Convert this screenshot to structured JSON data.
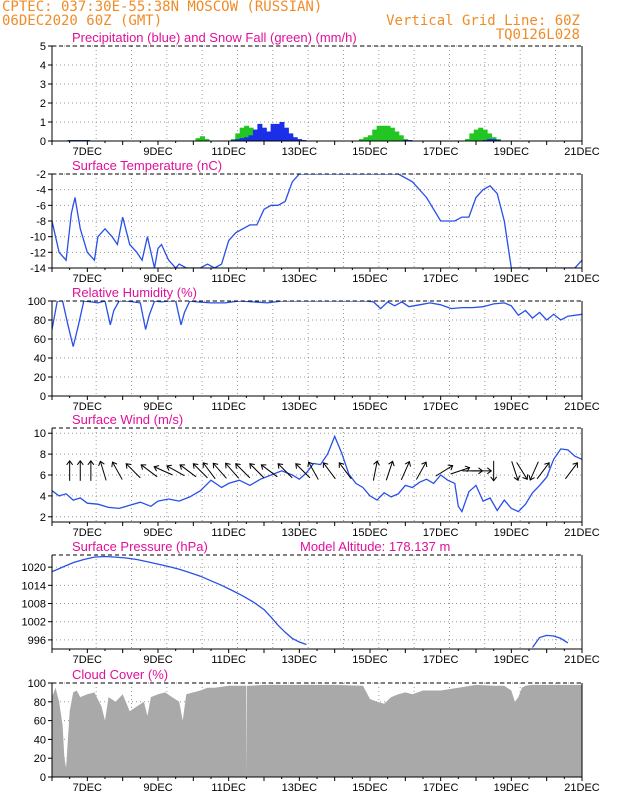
{
  "header": {
    "line1": "CPTEC:   037:30E-55:38N   MOSCOW (RUSSIAN)",
    "line2": "06DEC2020 60Z (GMT)",
    "grid_note": "Vertical Grid Line: 60Z",
    "code": "TQ0126L028"
  },
  "colors": {
    "header": "#f08c28",
    "title": "#e0109a",
    "line": "#2850e8",
    "precip": "#1b2fe8",
    "snow": "#22c522",
    "cloud": "#a9a9a9",
    "arrow": "#000000"
  },
  "chart_data": [
    {
      "id": "precip",
      "type": "bar",
      "title": "Precipitation (blue) and Snow Fall (green) (mm/h)",
      "ylim": [
        0,
        5
      ],
      "yticks": [
        "0",
        "1",
        "2",
        "3",
        "4",
        "5"
      ],
      "xticks": [
        "7DEC",
        "9DEC",
        "11DEC",
        "13DEC",
        "15DEC",
        "17DEC",
        "19DEC",
        "21DEC"
      ],
      "x_start": "06DEC2020 12Z",
      "step_hours": 3,
      "series": [
        {
          "name": "Precipitation",
          "color": "#1b2fe8",
          "values": [
            0.05,
            0.05,
            0.05,
            0.05,
            0.05,
            0,
            0,
            0,
            0,
            0,
            0,
            0,
            0,
            0,
            0,
            0,
            0,
            0,
            0,
            0,
            0,
            0,
            0,
            0,
            0,
            0,
            0,
            0,
            0,
            0,
            0,
            0,
            0,
            0,
            0,
            0,
            0,
            0.05,
            0.1,
            0.15,
            0.2,
            0.3,
            0.6,
            0.9,
            0.7,
            0.5,
            0.9,
            0.9,
            1.0,
            0.7,
            0.4,
            0.2,
            0.1,
            0.05,
            0,
            0,
            0,
            0,
            0,
            0,
            0,
            0,
            0,
            0,
            0,
            0,
            0,
            0,
            0,
            0,
            0,
            0,
            0,
            0,
            0,
            0,
            0.05,
            0.05,
            0,
            0,
            0,
            0,
            0,
            0,
            0,
            0,
            0,
            0,
            0,
            0,
            0,
            0,
            0,
            0,
            0.05,
            0.1,
            0.1,
            0.05,
            0,
            0,
            0,
            0,
            0,
            0,
            0,
            0,
            0,
            0,
            0,
            0
          ]
        },
        {
          "name": "Snow Fall",
          "color": "#22c522",
          "values": [
            0.05,
            0.05,
            0.05,
            0.05,
            0.05,
            0,
            0,
            0,
            0,
            0,
            0,
            0,
            0,
            0,
            0,
            0,
            0,
            0,
            0,
            0,
            0,
            0,
            0,
            0,
            0,
            0,
            0,
            0,
            0,
            0.15,
            0.25,
            0.1,
            0,
            0,
            0,
            0,
            0,
            0.1,
            0.4,
            0.7,
            0.8,
            0.7,
            0.5,
            0.3,
            0.2,
            0.3,
            0.4,
            0.3,
            0.2,
            0.1,
            0.05,
            0,
            0,
            0,
            0,
            0,
            0,
            0,
            0,
            0,
            0,
            0,
            0,
            0,
            0,
            0,
            0.1,
            0.2,
            0.3,
            0.6,
            0.8,
            0.8,
            0.8,
            0.7,
            0.5,
            0.3,
            0.1,
            0.05,
            0,
            0,
            0,
            0,
            0,
            0,
            0,
            0,
            0,
            0,
            0,
            0,
            0.1,
            0.4,
            0.6,
            0.7,
            0.6,
            0.4,
            0.2,
            0.1,
            0,
            0,
            0,
            0,
            0,
            0,
            0,
            0,
            0,
            0
          ]
        }
      ]
    },
    {
      "id": "temp",
      "type": "line",
      "title": "Surface Temperature (nC)",
      "ylim": [
        -14,
        -2
      ],
      "yticks": [
        "-14",
        "-12",
        "-10",
        "-8",
        "-6",
        "-4",
        "-2"
      ],
      "xticks": [
        "7DEC",
        "9DEC",
        "11DEC",
        "13DEC",
        "15DEC",
        "17DEC",
        "19DEC",
        "21DEC"
      ],
      "x": [
        6.0,
        6.2,
        6.4,
        6.55,
        6.65,
        6.8,
        7.0,
        7.2,
        7.3,
        7.5,
        7.7,
        7.85,
        8.0,
        8.2,
        8.4,
        8.55,
        8.7,
        8.9,
        9.0,
        9.1,
        9.3,
        9.5,
        9.6,
        9.8,
        10.0,
        10.2,
        10.4,
        10.6,
        10.8,
        11.0,
        11.2,
        11.4,
        11.6,
        11.8,
        12.0,
        12.2,
        12.4,
        12.6,
        12.8,
        13.0,
        13.4,
        14.0,
        14.6,
        15.0,
        15.4,
        15.8,
        16.2,
        16.6,
        17.0,
        17.4,
        17.6,
        17.8,
        18.0,
        18.2,
        18.4,
        18.6,
        18.8,
        19.0,
        19.4,
        19.8,
        20.2,
        20.6,
        20.8,
        21.0
      ],
      "values": [
        -8,
        -12,
        -13,
        -7,
        -5,
        -9,
        -12,
        -13,
        -10,
        -9,
        -10,
        -11,
        -7.5,
        -11,
        -12,
        -13,
        -10,
        -14,
        -11.5,
        -11,
        -13,
        -14,
        -13.5,
        -14,
        -14,
        -14,
        -13.5,
        -14,
        -13.5,
        -10.5,
        -9.5,
        -9,
        -8.5,
        -8.5,
        -6.5,
        -6,
        -6,
        -5.5,
        -3,
        -2,
        -2,
        -2,
        -2,
        -2,
        -2,
        -2,
        -3,
        -5,
        -8,
        -8,
        -7.5,
        -7.5,
        -5,
        -4,
        -3.5,
        -4.5,
        -8,
        -14,
        -14,
        -14,
        -14,
        -14,
        -14,
        -13
      ]
    },
    {
      "id": "rh",
      "type": "line",
      "title": "Relative Humidity (%)",
      "ylim": [
        0,
        100
      ],
      "yticks": [
        "0",
        "20",
        "40",
        "60",
        "80",
        "100"
      ],
      "xticks": [
        "7DEC",
        "9DEC",
        "11DEC",
        "13DEC",
        "15DEC",
        "17DEC",
        "19DEC",
        "21DEC"
      ],
      "x": [
        6.0,
        6.15,
        6.3,
        6.45,
        6.6,
        6.75,
        6.9,
        7.1,
        7.3,
        7.5,
        7.65,
        7.75,
        7.9,
        8.1,
        8.3,
        8.5,
        8.65,
        8.75,
        8.9,
        9.1,
        9.3,
        9.5,
        9.65,
        9.75,
        9.9,
        10.1,
        10.5,
        10.9,
        11.3,
        11.7,
        12.1,
        12.5,
        12.9,
        13.3,
        13.7,
        14.1,
        14.5,
        14.9,
        15.1,
        15.3,
        15.5,
        15.7,
        15.9,
        16.1,
        16.4,
        16.7,
        17.0,
        17.3,
        17.6,
        17.9,
        18.2,
        18.5,
        18.8,
        19.0,
        19.2,
        19.4,
        19.6,
        19.8,
        20.0,
        20.2,
        20.4,
        20.6,
        21.0
      ],
      "values": [
        70,
        100,
        100,
        75,
        52,
        75,
        100,
        99,
        98,
        100,
        75,
        90,
        100,
        100,
        99,
        98,
        70,
        85,
        100,
        99,
        100,
        100,
        75,
        88,
        100,
        99,
        98,
        98,
        100,
        99,
        98,
        100,
        100,
        100,
        100,
        100,
        100,
        100,
        99,
        92,
        99,
        95,
        99,
        94,
        96,
        98,
        96,
        92,
        93,
        93,
        94,
        97,
        98,
        95,
        85,
        90,
        82,
        88,
        80,
        86,
        80,
        84,
        86
      ]
    },
    {
      "id": "wind",
      "type": "line",
      "title": "Surface Wind (m/s)",
      "ylim": [
        1.5,
        10.5
      ],
      "yticks": [
        "2",
        "4",
        "6",
        "8",
        "10"
      ],
      "xticks": [
        "7DEC",
        "9DEC",
        "11DEC",
        "13DEC",
        "15DEC",
        "17DEC",
        "19DEC",
        "21DEC"
      ],
      "x": [
        6.0,
        6.2,
        6.4,
        6.6,
        6.8,
        7.0,
        7.3,
        7.6,
        7.9,
        8.2,
        8.5,
        8.8,
        9.0,
        9.3,
        9.6,
        9.9,
        10.2,
        10.5,
        10.8,
        11.0,
        11.3,
        11.6,
        11.9,
        12.2,
        12.5,
        12.8,
        13.0,
        13.2,
        13.4,
        13.6,
        13.8,
        14.0,
        14.2,
        14.4,
        14.6,
        14.8,
        15.0,
        15.2,
        15.4,
        15.6,
        15.8,
        16.0,
        16.2,
        16.4,
        16.6,
        16.8,
        17.0,
        17.2,
        17.4,
        17.5,
        17.6,
        17.8,
        18.0,
        18.2,
        18.4,
        18.6,
        18.8,
        19.0,
        19.2,
        19.4,
        19.6,
        19.8,
        20.0,
        20.2,
        20.4,
        20.6,
        20.8,
        21.0
      ],
      "values": [
        4.5,
        4.0,
        4.2,
        3.6,
        3.8,
        3.3,
        3.2,
        2.9,
        2.8,
        3.1,
        3.4,
        3.0,
        3.5,
        3.7,
        3.5,
        3.9,
        4.5,
        5.5,
        4.8,
        5.2,
        5.5,
        5.0,
        5.6,
        6.0,
        6.4,
        6.0,
        5.6,
        6.2,
        7.1,
        7.0,
        8.0,
        9.7,
        8.1,
        6.1,
        5.2,
        4.8,
        4.0,
        3.6,
        4.3,
        3.9,
        4.2,
        5.0,
        4.8,
        5.3,
        5.6,
        5.2,
        6.0,
        5.5,
        5.2,
        3.0,
        2.5,
        4.4,
        5.0,
        3.5,
        3.8,
        2.6,
        3.6,
        2.8,
        2.5,
        3.2,
        4.3,
        5.0,
        5.8,
        7.5,
        8.5,
        8.4,
        7.8,
        7.5
      ],
      "arrows": [
        {
          "x": 6.5,
          "dx": 0,
          "dy": 1
        },
        {
          "x": 6.8,
          "dx": 0,
          "dy": 1
        },
        {
          "x": 7.1,
          "dx": 0,
          "dy": 1
        },
        {
          "x": 7.45,
          "dx": -0.3,
          "dy": 1
        },
        {
          "x": 7.85,
          "dx": -0.5,
          "dy": 0.9
        },
        {
          "x": 8.3,
          "dx": -0.7,
          "dy": 0.7
        },
        {
          "x": 8.75,
          "dx": -0.8,
          "dy": 0.6
        },
        {
          "x": 9.15,
          "dx": -0.9,
          "dy": 0.4
        },
        {
          "x": 9.5,
          "dx": -0.9,
          "dy": 0.5
        },
        {
          "x": 9.85,
          "dx": -0.8,
          "dy": 0.6
        },
        {
          "x": 10.2,
          "dx": -0.7,
          "dy": 0.7
        },
        {
          "x": 10.45,
          "dx": -0.6,
          "dy": 0.8
        },
        {
          "x": 10.75,
          "dx": -0.7,
          "dy": 0.8
        },
        {
          "x": 11.1,
          "dx": -0.7,
          "dy": 0.8
        },
        {
          "x": 11.4,
          "dx": -0.7,
          "dy": 0.7
        },
        {
          "x": 11.8,
          "dx": -0.7,
          "dy": 0.7
        },
        {
          "x": 12.15,
          "dx": -0.8,
          "dy": 0.6
        },
        {
          "x": 12.6,
          "dx": -0.7,
          "dy": 0.7
        },
        {
          "x": 13.1,
          "dx": -0.7,
          "dy": 0.7
        },
        {
          "x": 13.4,
          "dx": -0.5,
          "dy": 0.9
        },
        {
          "x": 13.85,
          "dx": -0.6,
          "dy": 0.8
        },
        {
          "x": 14.3,
          "dx": -0.6,
          "dy": 0.8
        },
        {
          "x": 15.15,
          "dx": 0.2,
          "dy": 1
        },
        {
          "x": 15.55,
          "dx": 0.3,
          "dy": 0.9
        },
        {
          "x": 16.0,
          "dx": 0.4,
          "dy": 0.9
        },
        {
          "x": 16.45,
          "dx": 0.5,
          "dy": 0.9
        },
        {
          "x": 17.1,
          "dx": 0.8,
          "dy": 0.5
        },
        {
          "x": 17.55,
          "dx": 0.9,
          "dy": 0.3
        },
        {
          "x": 17.9,
          "dx": 0.9,
          "dy": 0
        },
        {
          "x": 18.15,
          "dx": 0.9,
          "dy": 0
        },
        {
          "x": 18.5,
          "dx": 0,
          "dy": -1
        },
        {
          "x": 19.1,
          "dx": 0.3,
          "dy": -0.9
        },
        {
          "x": 19.3,
          "dx": 0.5,
          "dy": -0.8
        },
        {
          "x": 19.65,
          "dx": -0.4,
          "dy": -0.9
        },
        {
          "x": 19.9,
          "dx": 0.6,
          "dy": 0.8
        },
        {
          "x": 20.7,
          "dx": 0.6,
          "dy": 0.8
        }
      ]
    },
    {
      "id": "pres",
      "type": "line",
      "title": "Surface Pressure (hPa)",
      "annotation": "Model Altitude: 178.137 m",
      "ylim": [
        993,
        1024
      ],
      "yticks": [
        "996",
        "1002",
        "1008",
        "1014",
        "1020"
      ],
      "xticks": [
        "7DEC",
        "9DEC",
        "11DEC",
        "13DEC",
        "15DEC",
        "17DEC",
        "19DEC",
        "21DEC"
      ],
      "x": [
        6.0,
        6.3,
        6.6,
        6.9,
        7.2,
        7.5,
        7.8,
        8.1,
        8.4,
        8.7,
        9.0,
        9.3,
        9.6,
        9.9,
        10.2,
        10.5,
        10.8,
        11.1,
        11.4,
        11.7,
        12.0,
        12.2,
        12.4,
        12.6,
        12.8,
        13.0,
        13.2,
        19.6,
        19.8,
        20.0,
        20.2,
        20.4,
        20.6
      ],
      "values": [
        1018.5,
        1020,
        1021.5,
        1022.5,
        1023.3,
        1023.5,
        1023.3,
        1023,
        1022.5,
        1021.8,
        1021,
        1020.2,
        1019.3,
        1018.2,
        1017,
        1015.5,
        1014,
        1012.3,
        1010.5,
        1008.5,
        1006,
        1003.5,
        1000.8,
        998.5,
        996.5,
        995.3,
        994.5,
        993.5,
        996.8,
        997.5,
        997.3,
        996.5,
        995
      ]
    },
    {
      "id": "cloud",
      "type": "area",
      "title": "Cloud Cover (%)",
      "ylim": [
        0,
        100
      ],
      "yticks": [
        "0",
        "20",
        "40",
        "60",
        "80",
        "100"
      ],
      "xticks": [
        "7DEC",
        "9DEC",
        "11DEC",
        "13DEC",
        "15DEC",
        "17DEC",
        "19DEC",
        "21DEC"
      ],
      "x": [
        6.0,
        6.1,
        6.2,
        6.3,
        6.35,
        6.4,
        6.5,
        6.6,
        6.7,
        6.8,
        7.0,
        7.2,
        7.4,
        7.5,
        7.6,
        7.8,
        8.0,
        8.2,
        8.4,
        8.6,
        8.7,
        8.8,
        9.0,
        9.2,
        9.4,
        9.6,
        9.7,
        9.8,
        10.0,
        10.2,
        10.4,
        10.6,
        10.8,
        11.0,
        11.2,
        11.5,
        11.51,
        11.52,
        11.6,
        12.0,
        13.0,
        14.0,
        14.8,
        14.9,
        15.0,
        15.2,
        15.4,
        15.6,
        15.8,
        16.0,
        16.2,
        16.5,
        17.0,
        17.5,
        18.0,
        18.5,
        18.8,
        19.0,
        19.1,
        19.2,
        19.3,
        19.4,
        19.6,
        20.0,
        20.5,
        21.0
      ],
      "values": [
        85,
        95,
        80,
        55,
        20,
        10,
        70,
        90,
        92,
        85,
        88,
        90,
        75,
        60,
        85,
        80,
        88,
        70,
        75,
        80,
        65,
        85,
        88,
        90,
        85,
        80,
        60,
        88,
        90,
        92,
        95,
        95,
        96,
        97,
        97,
        97,
        0,
        97,
        97,
        98,
        98,
        98,
        97,
        90,
        83,
        80,
        78,
        85,
        88,
        90,
        88,
        92,
        92,
        95,
        98,
        97,
        97,
        92,
        80,
        85,
        95,
        97,
        98,
        98,
        98,
        98
      ]
    }
  ]
}
